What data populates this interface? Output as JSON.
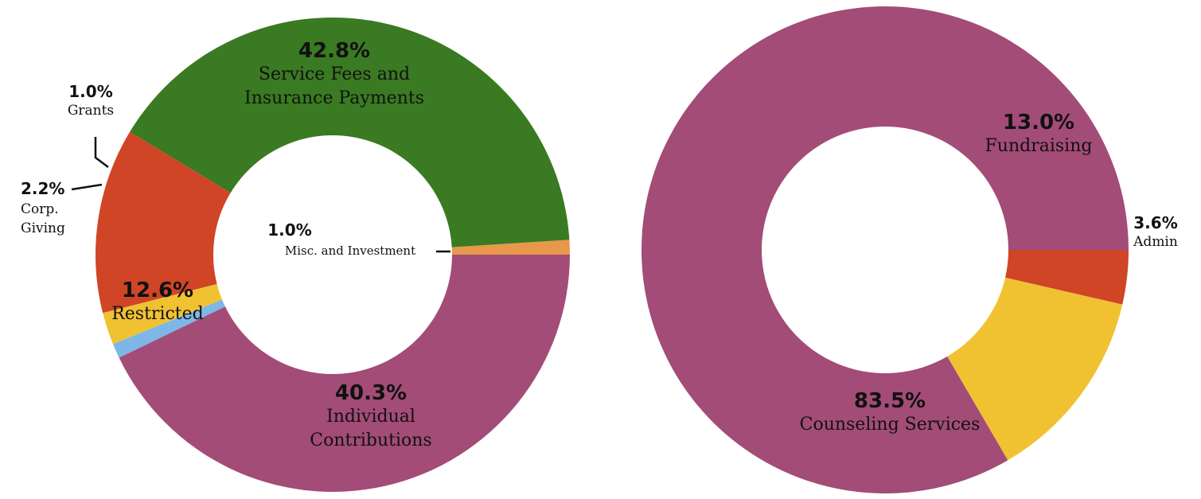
{
  "chart_data": [
    {
      "type": "pie",
      "variant": "donut",
      "title": "",
      "slices": [
        {
          "percent": 1.0,
          "label_pct": "1.0%",
          "label_lines": [
            "Misc. and Investment"
          ],
          "color": "#e8984a"
        },
        {
          "percent": 40.3,
          "label_pct": "40.3%",
          "label_lines": [
            "Individual",
            "Contributions"
          ],
          "color": "#3a7a22"
        },
        {
          "percent": 12.6,
          "label_pct": "12.6%",
          "label_lines": [
            "Restricted"
          ],
          "color": "#cf4526"
        },
        {
          "percent": 2.2,
          "label_pct": "2.2%",
          "label_lines": [
            "Corp.",
            "Giving"
          ],
          "color": "#f0c232"
        },
        {
          "percent": 1.0,
          "label_pct": "1.0%",
          "label_lines": [
            "Grants"
          ],
          "color": "#7db7e8"
        },
        {
          "percent": 42.8,
          "label_pct": "42.8%",
          "label_lines": [
            "Service Fees and",
            "Insurance Payments"
          ],
          "color": "#a34c78"
        }
      ]
    },
    {
      "type": "pie",
      "variant": "donut",
      "title": "",
      "slices": [
        {
          "percent": 83.5,
          "label_pct": "83.5%",
          "label_lines": [
            "Counseling Services"
          ],
          "color": "#a34c78"
        },
        {
          "percent": 13.0,
          "label_pct": "13.0%",
          "label_lines": [
            "Fundraising"
          ],
          "color": "#f0c232"
        },
        {
          "percent": 3.6,
          "label_pct": "3.6%",
          "label_lines": [
            "Admin"
          ],
          "color": "#cf4526"
        }
      ]
    }
  ]
}
